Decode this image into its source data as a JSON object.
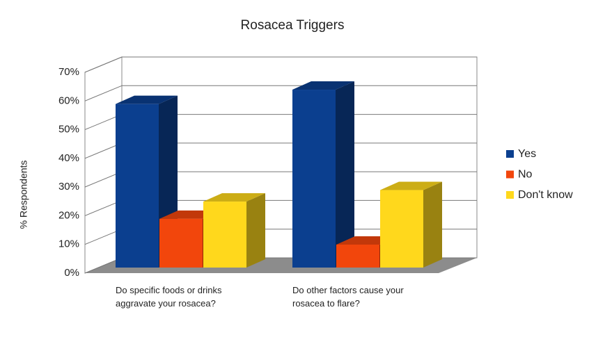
{
  "chart_data": {
    "type": "bar3d",
    "title": "Rosacea Triggers",
    "y_label": "% Respondents",
    "categories": [
      "Do specific foods or drinks aggravate your rosacea?",
      "Do other factors cause your rosacea to flare?"
    ],
    "series": [
      {
        "name": "Yes",
        "color": "#0b3f8f",
        "values": [
          57,
          62
        ]
      },
      {
        "name": "No",
        "color": "#f2460c",
        "values": [
          17,
          8
        ]
      },
      {
        "name": "Don't know",
        "color": "#ffd81c",
        "values": [
          23,
          27
        ]
      }
    ],
    "ylim": [
      0,
      70
    ],
    "yticks": [
      {
        "value": 0,
        "label": "0%"
      },
      {
        "value": 10,
        "label": "10%"
      },
      {
        "value": 20,
        "label": "20%"
      },
      {
        "value": 30,
        "label": "30%"
      },
      {
        "value": 40,
        "label": "40%"
      },
      {
        "value": 50,
        "label": "50%"
      },
      {
        "value": 60,
        "label": "60%"
      },
      {
        "value": 70,
        "label": "70%"
      }
    ],
    "grid": true,
    "legend": "right"
  }
}
